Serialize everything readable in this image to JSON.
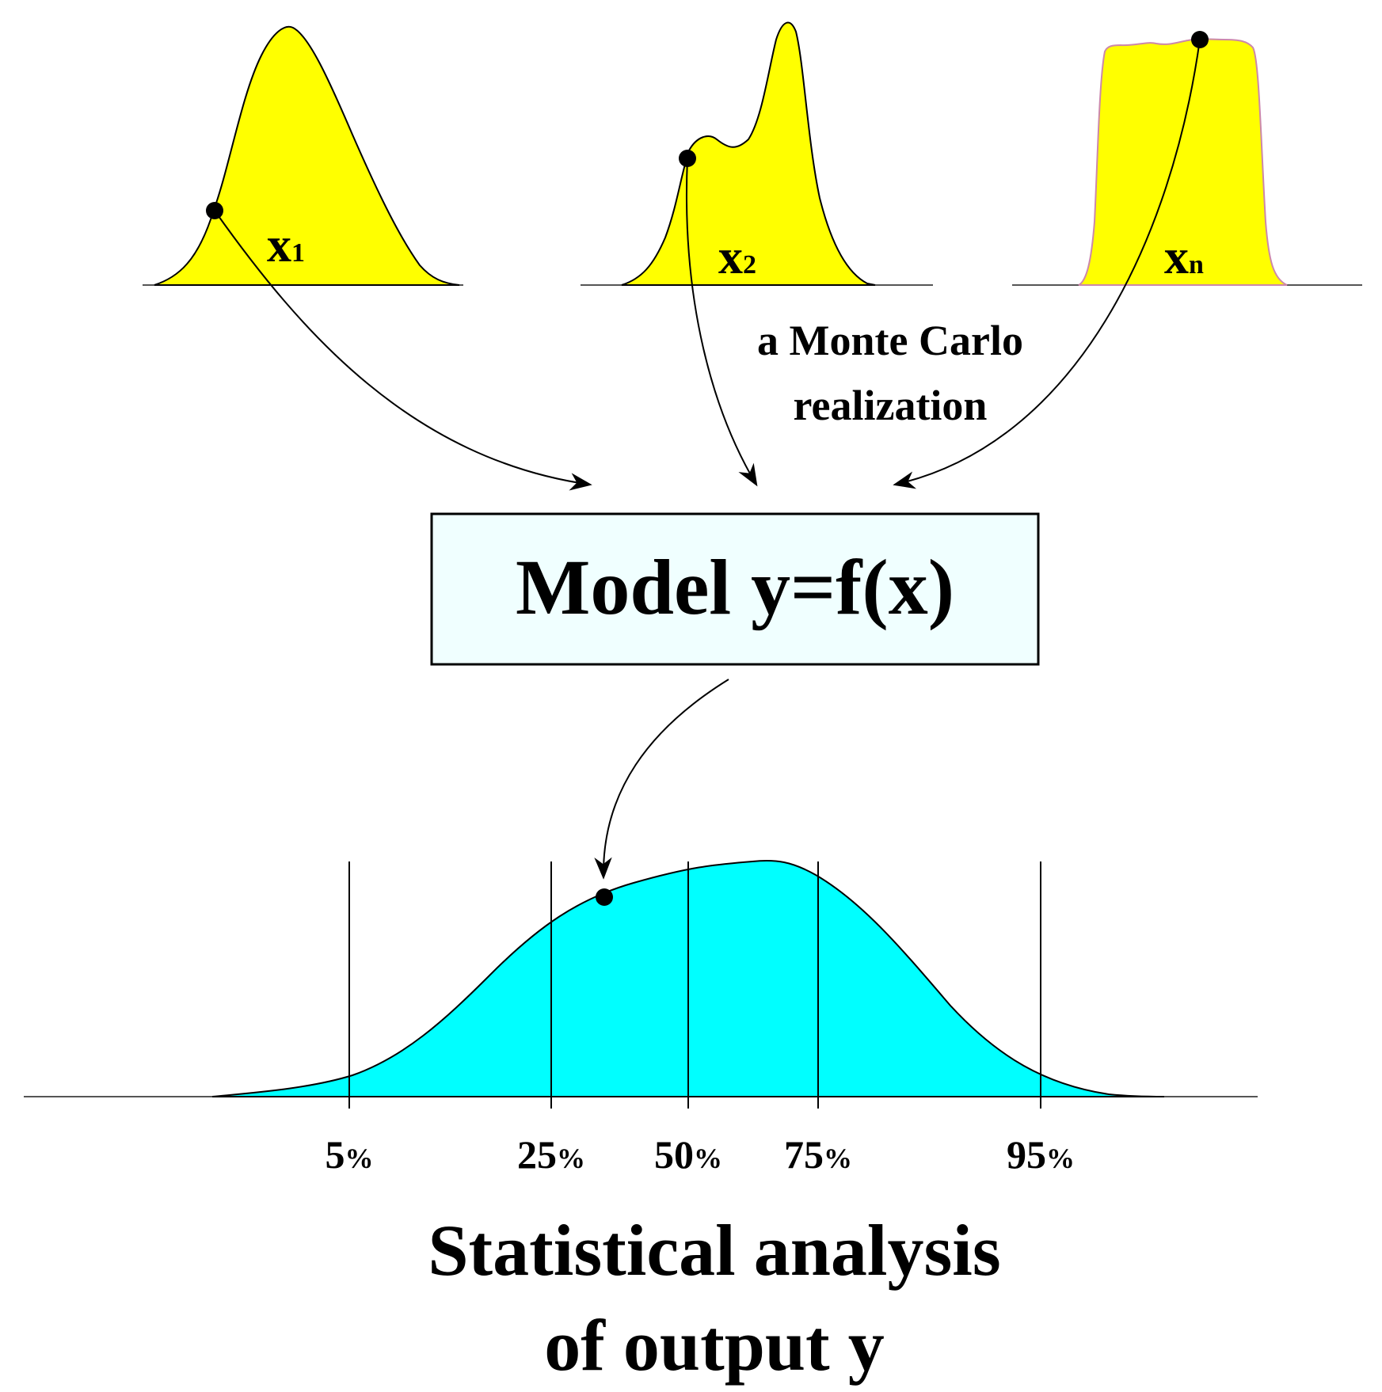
{
  "inputs": [
    {
      "var": "x",
      "sub": "1"
    },
    {
      "var": "x",
      "sub": "2"
    },
    {
      "var": "x",
      "sub": "n"
    }
  ],
  "annotation": {
    "line1": "a Monte Carlo",
    "line2": "realization"
  },
  "model": {
    "label": "Model y=f(x)"
  },
  "output": {
    "percentiles": [
      {
        "num": "5",
        "unit": "%"
      },
      {
        "num": "25",
        "unit": "%"
      },
      {
        "num": "50",
        "unit": "%"
      },
      {
        "num": "75",
        "unit": "%"
      },
      {
        "num": "95",
        "unit": "%"
      }
    ],
    "title_line1": "Statistical analysis",
    "title_line2": "of output y"
  },
  "colors": {
    "input_fill": "#ffff00",
    "output_fill": "#00ffff",
    "box_fill": "#f0ffff",
    "stroke": "#000000"
  }
}
